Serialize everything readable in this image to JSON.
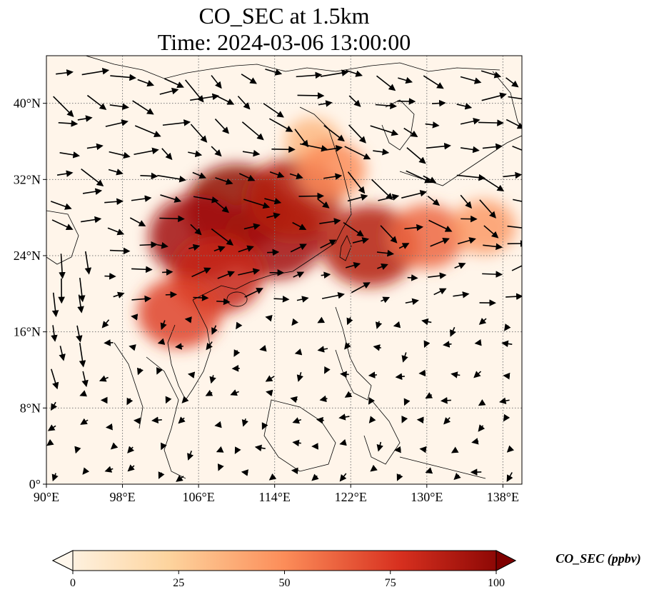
{
  "chart_data": {
    "type": "heatmap",
    "title": "CO_SEC at 1.5km",
    "subtitle": "Time: 2024-03-06 13:00:00",
    "x_ticks": [
      "90°E",
      "98°E",
      "106°E",
      "114°E",
      "122°E",
      "130°E",
      "138°E"
    ],
    "y_ticks": [
      "0°",
      "8°N",
      "16°N",
      "24°N",
      "32°N",
      "40°N"
    ],
    "xlim": [
      90,
      140
    ],
    "ylim": [
      0,
      45
    ],
    "x_tick_values": [
      90,
      98,
      106,
      114,
      122,
      130,
      138
    ],
    "y_tick_values": [
      0,
      8,
      16,
      24,
      32,
      40
    ],
    "grid": true,
    "colorbar": {
      "label": "CO_SEC (ppbv)",
      "ticks": [
        "0",
        "25",
        "50",
        "75",
        "100"
      ],
      "tick_values": [
        0,
        25,
        50,
        75,
        100
      ],
      "range": [
        0,
        100
      ],
      "extend": "both",
      "colormap": "OrRd",
      "colors": [
        "#fff7ec",
        "#fdd49e",
        "#fc8d59",
        "#d7301f",
        "#7f0000"
      ]
    },
    "plume": [
      {
        "lon": 110,
        "lat": 29,
        "value": 95
      },
      {
        "lon": 106,
        "lat": 26,
        "value": 90
      },
      {
        "lon": 114,
        "lat": 26,
        "value": 90
      },
      {
        "lon": 116,
        "lat": 30,
        "value": 85
      },
      {
        "lon": 108,
        "lat": 22,
        "value": 80
      },
      {
        "lon": 104,
        "lat": 18,
        "value": 70
      },
      {
        "lon": 124,
        "lat": 25,
        "value": 85
      },
      {
        "lon": 130,
        "lat": 26,
        "value": 60
      },
      {
        "lon": 136,
        "lat": 27,
        "value": 45
      },
      {
        "lon": 118,
        "lat": 36,
        "value": 35
      },
      {
        "lon": 120,
        "lat": 33,
        "value": 50
      }
    ]
  }
}
